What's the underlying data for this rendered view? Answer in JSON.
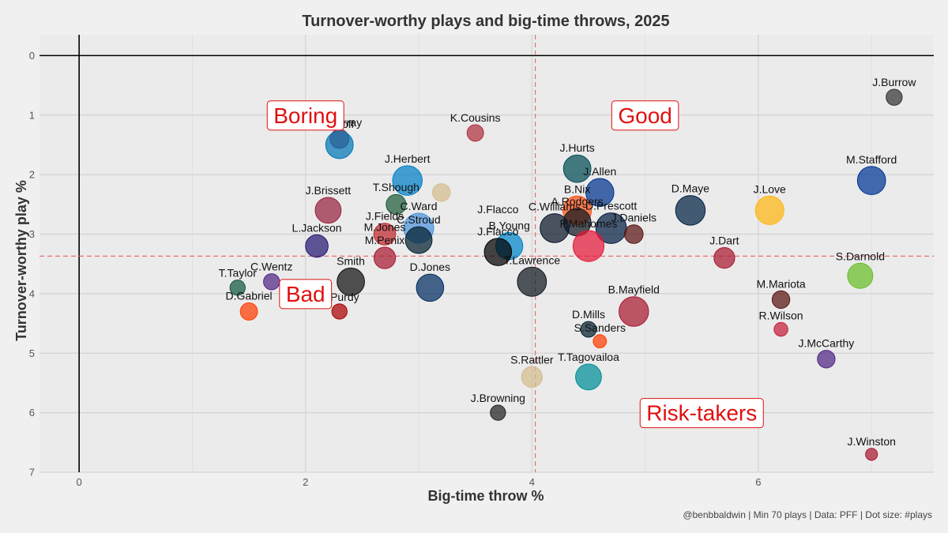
{
  "chart_data": {
    "type": "scatter",
    "title": "Turnover-worthy plays and big-time throws, 2025",
    "xlabel": "Big-time throw %",
    "ylabel": "Turnover-worthy play %",
    "caption": "@benbbaldwin | Min 70 plays | Data: PFF | Dot size: #plays",
    "xlim": [
      -0.35,
      7.55
    ],
    "ylim": [
      7.0,
      -0.35
    ],
    "y_reversed": true,
    "x_ticks": [
      "0",
      "2",
      "4",
      "6"
    ],
    "y_ticks": [
      "0",
      "1",
      "2",
      "3",
      "4",
      "5",
      "6",
      "7"
    ],
    "grid": true,
    "reference_lines": {
      "x_mean": 4.03,
      "y_mean": 3.37,
      "color": "#e87070",
      "style": "dashed"
    },
    "quadrants": [
      {
        "label": "Boring",
        "x": 2.0,
        "y": 1.0
      },
      {
        "label": "Good",
        "x": 5.0,
        "y": 1.0
      },
      {
        "label": "Bad",
        "x": 2.0,
        "y": 4.0
      },
      {
        "label": "Risk-takers",
        "x": 5.5,
        "y": 6.0
      }
    ],
    "points": [
      {
        "name": "J.Burrow",
        "x": 7.2,
        "y": 0.7,
        "plays": 120,
        "color": "#333333"
      },
      {
        "name": "K.Cousins",
        "x": 3.5,
        "y": 1.3,
        "plays": 130,
        "color": "#b03040"
      },
      {
        "name": "K.Murray",
        "x": 2.3,
        "y": 1.4,
        "plays": 200,
        "color": "#97233f"
      },
      {
        "name": "J.Goff",
        "x": 2.3,
        "y": 1.5,
        "plays": 560,
        "color": "#0076b6"
      },
      {
        "name": "J.Herbert",
        "x": 2.9,
        "y": 2.1,
        "plays": 680,
        "color": "#0080c6"
      },
      {
        "name": "J.Hurts",
        "x": 4.4,
        "y": 1.9,
        "plays": 560,
        "color": "#004c54"
      },
      {
        "name": "M.Stafford",
        "x": 7.0,
        "y": 2.1,
        "plays": 600,
        "color": "#003594"
      },
      {
        "name": "J.Allen",
        "x": 4.6,
        "y": 2.3,
        "plays": 590,
        "color": "#00338d"
      },
      {
        "name": "T.Shough",
        "x": 2.8,
        "y": 2.5,
        "plays": 230,
        "color": "#1e5b3a"
      },
      {
        "name": "",
        "x": 3.2,
        "y": 2.3,
        "plays": 160,
        "color": "#d3bc8d"
      },
      {
        "name": "J.Brissett",
        "x": 2.2,
        "y": 2.6,
        "plays": 480,
        "color": "#97233f"
      },
      {
        "name": "B.Nix",
        "x": 4.4,
        "y": 2.6,
        "plays": 620,
        "color": "#fb4f14"
      },
      {
        "name": "D.Maye",
        "x": 5.4,
        "y": 2.6,
        "plays": 680,
        "color": "#002244"
      },
      {
        "name": "J.Love",
        "x": 6.1,
        "y": 2.6,
        "plays": 620,
        "color": "#ffb612"
      },
      {
        "name": "J.Flacco",
        "x": 3.7,
        "y": 2.7,
        "plays": 0,
        "color": "#000000"
      },
      {
        "name": "A.Rodgers",
        "x": 4.4,
        "y": 2.8,
        "plays": 560,
        "color": "#101820"
      },
      {
        "name": "C.Williams",
        "x": 4.2,
        "y": 2.9,
        "plays": 640,
        "color": "#0b162a"
      },
      {
        "name": "D.Prescott",
        "x": 4.7,
        "y": 2.9,
        "plays": 740,
        "color": "#041e42"
      },
      {
        "name": "J.Fields",
        "x": 2.7,
        "y": 3.0,
        "plays": 300,
        "color": "#c0282d"
      },
      {
        "name": "M.Jones",
        "x": 2.7,
        "y": 3.0,
        "plays": 0,
        "color": "#c0282d"
      },
      {
        "name": "C.Ward",
        "x": 3.0,
        "y": 2.9,
        "plays": 700,
        "color": "#4b92db"
      },
      {
        "name": "J.Daniels",
        "x": 4.9,
        "y": 3.0,
        "plays": 190,
        "color": "#5a1414"
      },
      {
        "name": "C.Stroud",
        "x": 3.0,
        "y": 3.1,
        "plays": 520,
        "color": "#03202f"
      },
      {
        "name": "B.Young",
        "x": 3.8,
        "y": 3.2,
        "plays": 540,
        "color": "#0085ca"
      },
      {
        "name": "P.Mahomes",
        "x": 4.5,
        "y": 3.2,
        "plays": 760,
        "color": "#e31837"
      },
      {
        "name": "L.Jackson",
        "x": 2.1,
        "y": 3.2,
        "plays": 330,
        "color": "#241773"
      },
      {
        "name": "J.Flacco",
        "x": 3.7,
        "y": 3.3,
        "plays": 550,
        "color": "#000000"
      },
      {
        "name": "M.Penix",
        "x": 2.7,
        "y": 3.4,
        "plays": 290,
        "color": "#a71930"
      },
      {
        "name": "J.Dart",
        "x": 5.7,
        "y": 3.4,
        "plays": 260,
        "color": "#a71930"
      },
      {
        "name": "C.Wentz",
        "x": 1.7,
        "y": 3.8,
        "plays": 120,
        "color": "#4f2683"
      },
      {
        "name": "Smith",
        "x": 2.4,
        "y": 3.8,
        "plays": 560,
        "color": "#111111"
      },
      {
        "name": "T.Lawrence",
        "x": 4.0,
        "y": 3.8,
        "plays": 650,
        "color": "#101820"
      },
      {
        "name": "S.Darnold",
        "x": 6.9,
        "y": 3.7,
        "plays": 450,
        "color": "#69be28"
      },
      {
        "name": "T.Taylor",
        "x": 1.4,
        "y": 3.9,
        "plays": 100,
        "color": "#125740"
      },
      {
        "name": "D.Jones",
        "x": 3.1,
        "y": 3.9,
        "plays": 550,
        "color": "#002c5f"
      },
      {
        "name": "M.Mariota",
        "x": 6.2,
        "y": 4.1,
        "plays": 160,
        "color": "#5a1414"
      },
      {
        "name": "D.Gabriel",
        "x": 1.5,
        "y": 4.3,
        "plays": 150,
        "color": "#ff3c00"
      },
      {
        "name": "B.Purdy",
        "x": 2.3,
        "y": 4.3,
        "plays": 100,
        "color": "#aa0000"
      },
      {
        "name": "B.Mayfield",
        "x": 4.9,
        "y": 4.3,
        "plays": 680,
        "color": "#a71930"
      },
      {
        "name": "D.Mills",
        "x": 4.5,
        "y": 4.6,
        "plays": 110,
        "color": "#03202f"
      },
      {
        "name": "R.Wilson",
        "x": 6.2,
        "y": 4.6,
        "plays": 70,
        "color": "#c41e3a"
      },
      {
        "name": "S.Sanders",
        "x": 4.6,
        "y": 4.8,
        "plays": 60,
        "color": "#ff3c00"
      },
      {
        "name": "J.McCarthy",
        "x": 6.6,
        "y": 5.1,
        "plays": 160,
        "color": "#4f2683"
      },
      {
        "name": "T.Tagovailoa",
        "x": 4.5,
        "y": 5.4,
        "plays": 480,
        "color": "#008e97"
      },
      {
        "name": "S.Rattler",
        "x": 4.0,
        "y": 5.4,
        "plays": 260,
        "color": "#d3bc8d"
      },
      {
        "name": "J.Browning",
        "x": 3.7,
        "y": 6.0,
        "plays": 100,
        "color": "#222222"
      },
      {
        "name": "J.Winston",
        "x": 7.0,
        "y": 6.7,
        "plays": 40,
        "color": "#a71930"
      }
    ]
  }
}
